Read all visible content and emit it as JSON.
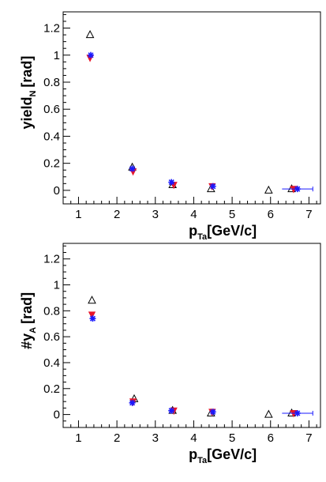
{
  "chart_data": [
    {
      "type": "scatter",
      "xlabel": {
        "main": "p",
        "sub": "Ta",
        "rest": "[GeV/c]"
      },
      "ylabel": {
        "main": "yield",
        "sub": "N",
        "rest": "[rad]"
      },
      "xlim": [
        0.6,
        7.3
      ],
      "ylim": [
        -0.1,
        1.32
      ],
      "xticks": [
        "1",
        "2",
        "3",
        "4",
        "5",
        "6",
        "7"
      ],
      "yticks": [
        "0",
        "0.2",
        "0.4",
        "0.6",
        "0.8",
        "1",
        "1.2"
      ],
      "grid": false,
      "series": [
        {
          "marker": "open-triangle-up",
          "color": "#000000",
          "x": [
            1.3,
            2.4,
            3.45,
            4.45,
            5.95,
            6.55
          ],
          "y": [
            1.15,
            0.17,
            0.04,
            0.01,
            0.0,
            0.01
          ]
        },
        {
          "marker": "filled-triangle-down",
          "color": "#e8162a",
          "x": [
            1.3,
            2.42,
            3.48,
            4.48,
            6.6
          ],
          "y": [
            0.98,
            0.14,
            0.04,
            0.03,
            0.01
          ]
        },
        {
          "marker": "star",
          "color": "#1a1aff",
          "x": [
            1.32,
            2.4,
            3.42,
            4.5,
            6.7
          ],
          "y": [
            1.0,
            0.16,
            0.06,
            0.03,
            0.01
          ]
        }
      ]
    },
    {
      "type": "scatter",
      "xlabel": {
        "main": "p",
        "sub": "Ta",
        "rest": "[GeV/c]"
      },
      "ylabel": {
        "main": "#y",
        "sub": "A",
        "rest": "[rad]"
      },
      "xlim": [
        0.6,
        7.3
      ],
      "ylim": [
        -0.1,
        1.32
      ],
      "xticks": [
        "1",
        "2",
        "3",
        "4",
        "5",
        "6",
        "7"
      ],
      "yticks": [
        "0",
        "0.2",
        "0.4",
        "0.6",
        "0.8",
        "1",
        "1.2"
      ],
      "grid": false,
      "series": [
        {
          "marker": "open-triangle-up",
          "color": "#000000",
          "x": [
            1.35,
            2.45,
            3.45,
            4.45,
            5.95,
            6.55
          ],
          "y": [
            0.88,
            0.12,
            0.03,
            0.01,
            0.0,
            0.01
          ]
        },
        {
          "marker": "filled-triangle-down",
          "color": "#e8162a",
          "x": [
            1.35,
            2.42,
            3.48,
            4.48,
            6.6
          ],
          "y": [
            0.77,
            0.1,
            0.03,
            0.02,
            0.01
          ]
        },
        {
          "marker": "star",
          "color": "#1a1aff",
          "x": [
            1.37,
            2.4,
            3.42,
            4.5,
            6.7
          ],
          "y": [
            0.74,
            0.09,
            0.03,
            0.02,
            0.01
          ]
        }
      ]
    }
  ]
}
